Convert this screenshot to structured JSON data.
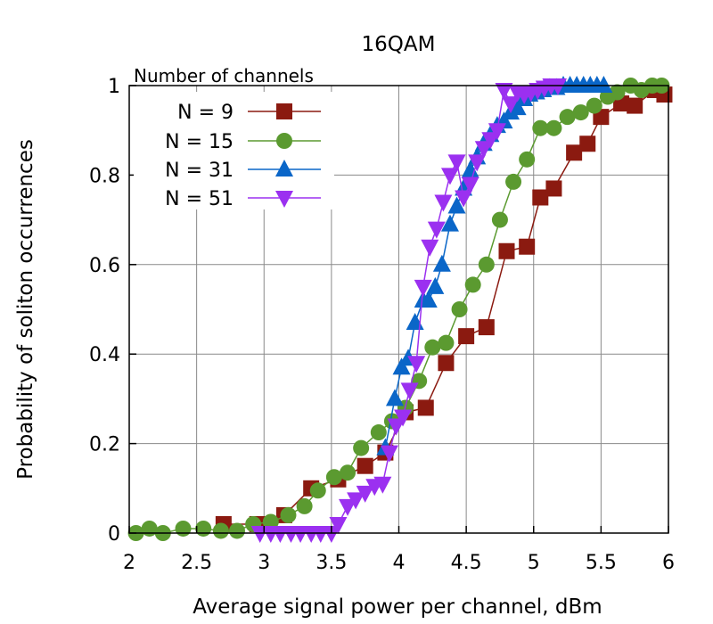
{
  "chart_data": {
    "type": "line",
    "title": "16QAM",
    "xlabel": "Average signal power per channel, dBm",
    "ylabel": "Probability of soliton occurrences",
    "xlim": [
      2,
      6
    ],
    "ylim": [
      0,
      1
    ],
    "xticks": [
      2,
      2.5,
      3,
      3.5,
      4,
      4.5,
      5,
      5.5,
      6
    ],
    "xtick_labels": [
      "2",
      "2.5",
      "3",
      "3.5",
      "4",
      "4.5",
      "5",
      "5.5",
      "6"
    ],
    "yticks": [
      0,
      0.2,
      0.4,
      0.6,
      0.8,
      1
    ],
    "ytick_labels": [
      "0",
      "0.2",
      "0.4",
      "0.6",
      "0.8",
      "1"
    ],
    "grid": true,
    "legend_title": "Number of channels",
    "legend_position": "top-left",
    "series": [
      {
        "name": "N = 9",
        "color": "#8b1a10",
        "marker": "square",
        "x": [
          2.7,
          2.95,
          3.15,
          3.35,
          3.55,
          3.75,
          3.9,
          4.05,
          4.2,
          4.35,
          4.5,
          4.65,
          4.8,
          4.95,
          5.05,
          5.15,
          5.3,
          5.4,
          5.5,
          5.65,
          5.75,
          5.9,
          5.97
        ],
        "y": [
          0.02,
          0.02,
          0.04,
          0.1,
          0.12,
          0.15,
          0.18,
          0.27,
          0.28,
          0.38,
          0.44,
          0.46,
          0.63,
          0.64,
          0.75,
          0.77,
          0.85,
          0.87,
          0.93,
          0.96,
          0.955,
          0.99,
          0.98
        ]
      },
      {
        "name": "N = 15",
        "color": "#5b9a30",
        "marker": "circle",
        "x": [
          2.05,
          2.15,
          2.25,
          2.4,
          2.55,
          2.68,
          2.8,
          2.92,
          3.05,
          3.18,
          3.3,
          3.4,
          3.52,
          3.62,
          3.72,
          3.85,
          3.95,
          4.05,
          4.15,
          4.25,
          4.35,
          4.45,
          4.55,
          4.65,
          4.75,
          4.85,
          4.95,
          5.05,
          5.15,
          5.25,
          5.35,
          5.45,
          5.55,
          5.62,
          5.72,
          5.8,
          5.88,
          5.95
        ],
        "y": [
          0.0,
          0.01,
          0.0,
          0.01,
          0.01,
          0.005,
          0.005,
          0.02,
          0.025,
          0.04,
          0.06,
          0.095,
          0.125,
          0.135,
          0.19,
          0.225,
          0.25,
          0.28,
          0.34,
          0.415,
          0.425,
          0.5,
          0.555,
          0.6,
          0.7,
          0.785,
          0.835,
          0.905,
          0.905,
          0.93,
          0.94,
          0.955,
          0.975,
          0.985,
          1.0,
          0.99,
          1.0,
          1.0
        ]
      },
      {
        "name": "N = 31",
        "color": "#0a66c8",
        "marker": "triangle-up",
        "x": [
          3.9,
          3.97,
          4.02,
          4.07,
          4.12,
          4.18,
          4.22,
          4.27,
          4.32,
          4.38,
          4.43,
          4.48,
          4.53,
          4.58,
          4.63,
          4.68,
          4.73,
          4.78,
          4.83,
          4.88,
          4.93,
          4.97,
          5.02,
          5.07,
          5.12,
          5.17,
          5.22,
          5.27,
          5.32,
          5.37,
          5.42,
          5.47,
          5.52
        ],
        "y": [
          0.19,
          0.3,
          0.37,
          0.39,
          0.47,
          0.52,
          0.52,
          0.55,
          0.6,
          0.69,
          0.73,
          0.77,
          0.81,
          0.84,
          0.87,
          0.89,
          0.91,
          0.92,
          0.94,
          0.95,
          0.97,
          0.98,
          0.985,
          0.99,
          0.995,
          0.995,
          1.0,
          1.0,
          1.0,
          1.0,
          1.0,
          1.0,
          1.0
        ]
      },
      {
        "name": "N = 51",
        "color": "#9b30f0",
        "marker": "triangle-down",
        "x": [
          2.97,
          3.05,
          3.12,
          3.2,
          3.27,
          3.35,
          3.42,
          3.5,
          3.55,
          3.62,
          3.68,
          3.75,
          3.82,
          3.88,
          3.93,
          3.98,
          4.03,
          4.08,
          4.13,
          4.18,
          4.23,
          4.28,
          4.33,
          4.38,
          4.43,
          4.48,
          4.53,
          4.58,
          4.63,
          4.68,
          4.73,
          4.78,
          4.83,
          4.88,
          4.93,
          4.98,
          5.03,
          5.08,
          5.13,
          5.18
        ],
        "y": [
          0.0,
          0.0,
          0.0,
          0.0,
          0.0,
          0.0,
          0.0,
          0.0,
          0.02,
          0.06,
          0.075,
          0.09,
          0.105,
          0.11,
          0.18,
          0.24,
          0.26,
          0.32,
          0.38,
          0.55,
          0.64,
          0.68,
          0.74,
          0.8,
          0.83,
          0.75,
          0.78,
          0.83,
          0.86,
          0.88,
          0.9,
          0.99,
          0.96,
          0.985,
          0.98,
          0.985,
          0.99,
          0.995,
          1.0,
          1.0
        ]
      }
    ]
  }
}
